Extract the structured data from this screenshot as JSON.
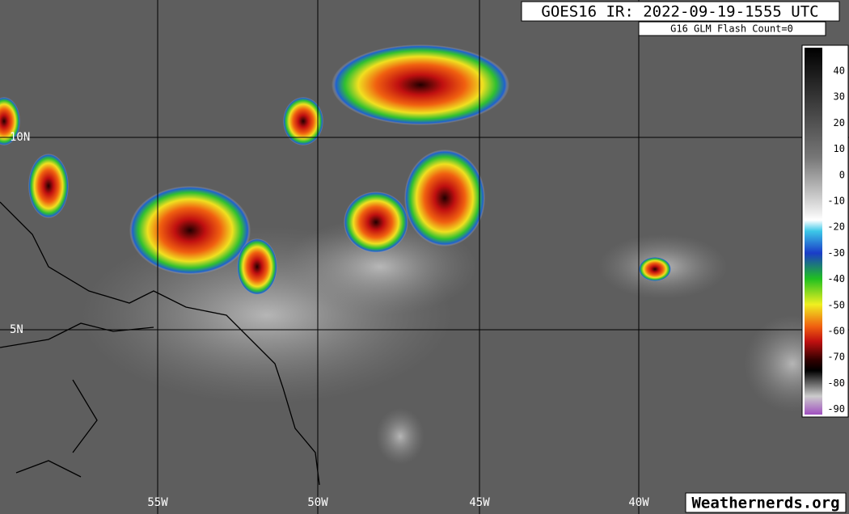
{
  "header": {
    "title": "GOES16 IR: 2022-09-19-1555 UTC",
    "subtitle": "G16 GLM Flash Count=0"
  },
  "latitude_labels": [
    "10N",
    "5N"
  ],
  "longitude_labels": [
    "55W",
    "50W",
    "45W",
    "40W"
  ],
  "colorbar": {
    "ticks": [
      40,
      30,
      20,
      10,
      0,
      -10,
      -20,
      -30,
      -40,
      -50,
      -60,
      -70,
      -80,
      -90
    ]
  },
  "credit": "Weathernerds.org"
}
